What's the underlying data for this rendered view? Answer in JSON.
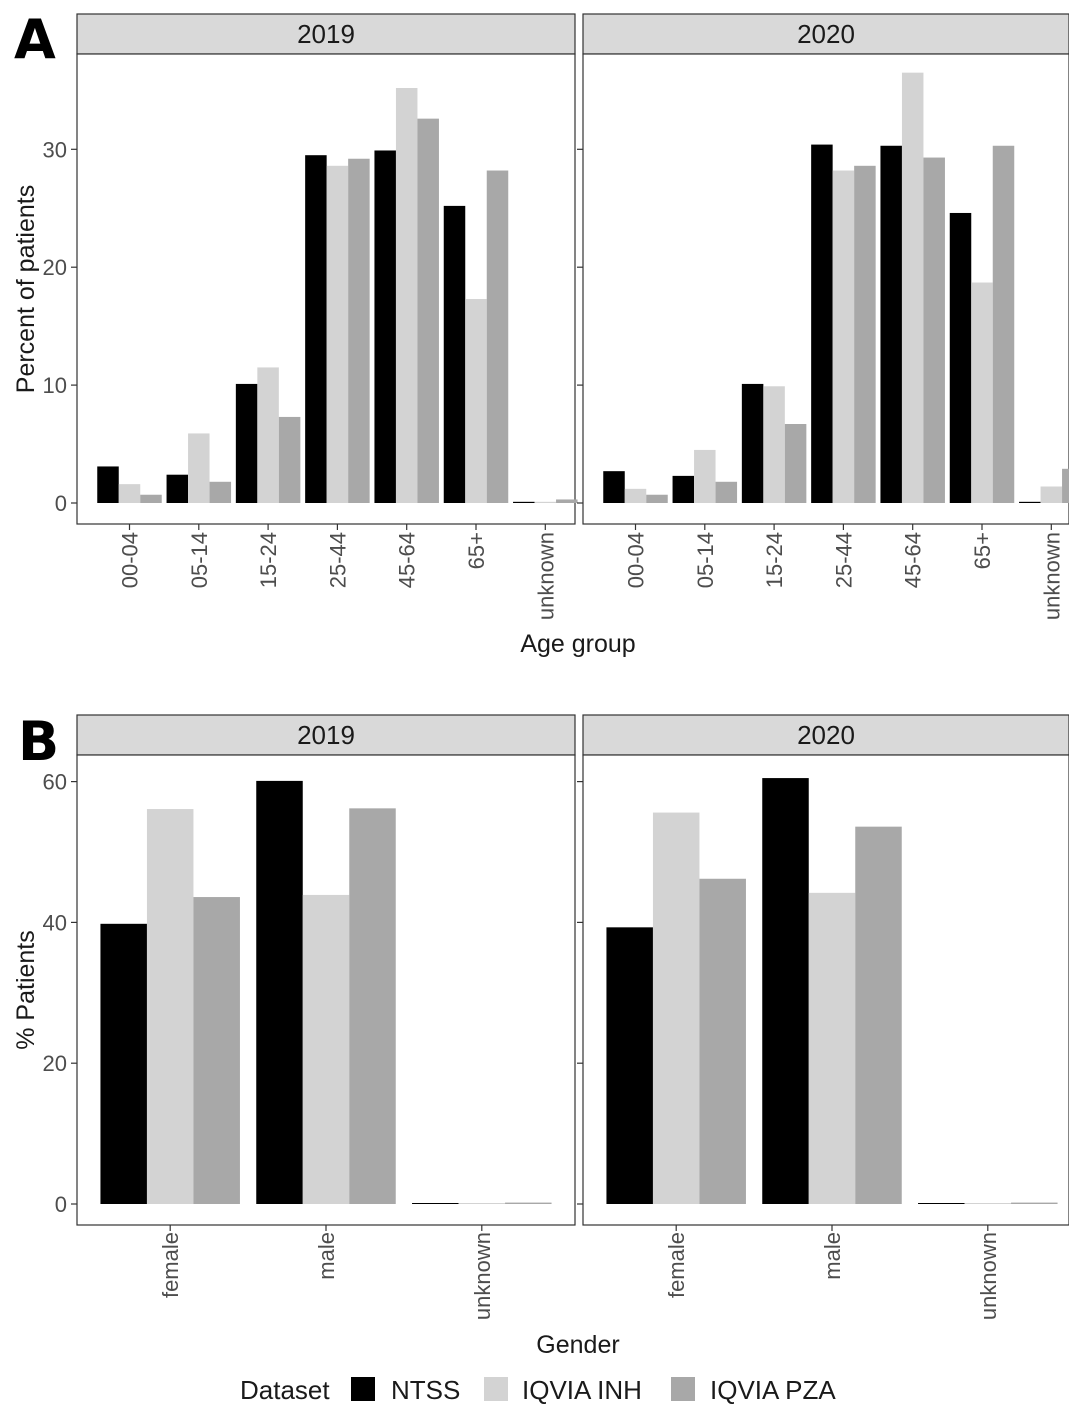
{
  "figure": {
    "panels": [
      {
        "letter": "A"
      },
      {
        "letter": "B"
      }
    ]
  },
  "legend": {
    "title": "Dataset",
    "entries": [
      {
        "name": "NTSS",
        "color": "#000000"
      },
      {
        "name": "IQVIA INH",
        "color": "#d3d3d3"
      },
      {
        "name": "IQVIA PZA",
        "color": "#a8a8a8"
      }
    ]
  },
  "chart_data": [
    {
      "type": "bar",
      "panel": "A",
      "facets": [
        "2019",
        "2020"
      ],
      "xlabel": "Age group",
      "ylabel": "Percent of patients",
      "categories": [
        "00-04",
        "05-14",
        "15-24",
        "25-44",
        "45-64",
        "65+",
        "unknown"
      ],
      "ylim": [
        0,
        37.8
      ],
      "yticks": [
        0,
        10,
        20,
        30
      ],
      "grid": false,
      "legend_position": "bottom",
      "series_names": [
        "NTSS",
        "IQVIA INH",
        "IQVIA PZA"
      ],
      "data": {
        "2019": [
          [
            3.1,
            2.4,
            10.1,
            29.5,
            29.9,
            25.2,
            0.1
          ],
          [
            1.6,
            5.9,
            11.5,
            28.6,
            35.2,
            17.3,
            0.1
          ],
          [
            0.7,
            1.8,
            7.3,
            29.2,
            32.6,
            28.2,
            0.3
          ]
        ],
        "2020": [
          [
            2.7,
            2.3,
            10.1,
            30.4,
            30.3,
            24.6,
            0.1
          ],
          [
            1.2,
            4.5,
            9.9,
            28.2,
            36.5,
            18.7,
            1.4
          ],
          [
            0.7,
            1.8,
            6.7,
            28.6,
            29.3,
            30.3,
            2.9
          ]
        ]
      }
    },
    {
      "type": "bar",
      "panel": "B",
      "facets": [
        "2019",
        "2020"
      ],
      "xlabel": "Gender",
      "ylabel": "% Patients",
      "categories": [
        "female",
        "male",
        "unknown"
      ],
      "ylim": [
        0,
        62.3
      ],
      "yticks": [
        0,
        20,
        40,
        60
      ],
      "grid": false,
      "legend_position": "bottom",
      "series_names": [
        "NTSS",
        "IQVIA INH",
        "IQVIA PZA"
      ],
      "data": {
        "2019": [
          [
            39.8,
            60.1,
            0.1
          ],
          [
            56.1,
            43.9,
            0.0
          ],
          [
            43.6,
            56.2,
            0.2
          ]
        ],
        "2020": [
          [
            39.3,
            60.5,
            0.1
          ],
          [
            55.6,
            44.2,
            0.0
          ],
          [
            46.2,
            53.6,
            0.2
          ]
        ]
      }
    }
  ]
}
